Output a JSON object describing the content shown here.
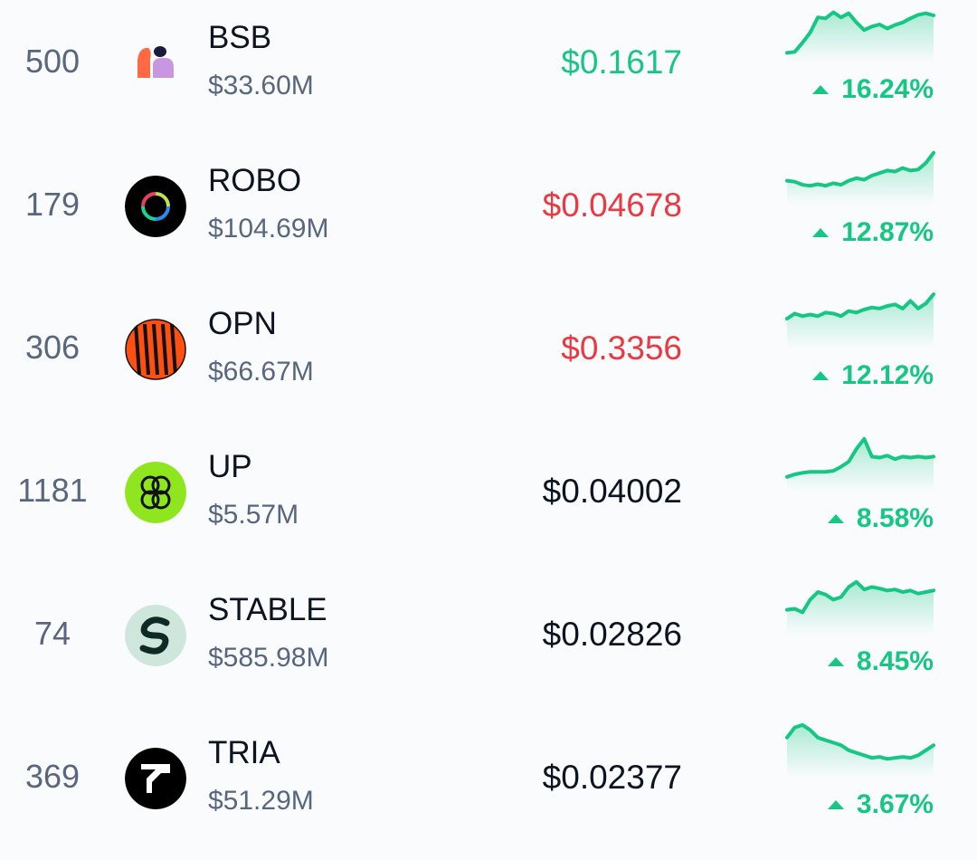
{
  "colors": {
    "up": "#16c784",
    "down": "#ea3943",
    "neutral": "#0d1421",
    "muted": "#58667e"
  },
  "coins": [
    {
      "rank": "500",
      "symbol": "BSB",
      "market_cap": "$33.60M",
      "price": "$0.1617",
      "price_trend": "up",
      "change": "16.24%",
      "change_dir": "up",
      "icon": "bsb-logo",
      "spark": [
        10,
        12,
        30,
        50,
        80,
        78,
        90,
        80,
        88,
        70,
        55,
        62,
        66,
        58,
        65,
        70,
        78,
        85,
        88,
        84
      ]
    },
    {
      "rank": "179",
      "symbol": "ROBO",
      "market_cap": "$104.69M",
      "price": "$0.04678",
      "price_trend": "down",
      "change": "12.87%",
      "change_dir": "up",
      "icon": "robo-logo",
      "spark": [
        40,
        38,
        32,
        30,
        33,
        30,
        35,
        32,
        40,
        45,
        42,
        50,
        55,
        60,
        58,
        65,
        60,
        62,
        75,
        95
      ]
    },
    {
      "rank": "306",
      "symbol": "OPN",
      "market_cap": "$66.67M",
      "price": "$0.3356",
      "price_trend": "down",
      "change": "12.12%",
      "change_dir": "up",
      "icon": "opn-logo",
      "spark": [
        50,
        60,
        55,
        58,
        55,
        62,
        60,
        55,
        65,
        62,
        68,
        72,
        70,
        75,
        78,
        70,
        85,
        70,
        80,
        98
      ]
    },
    {
      "rank": "1181",
      "symbol": "UP",
      "market_cap": "$5.57M",
      "price": "$0.04002",
      "price_trend": "neutral",
      "change": "8.58%",
      "change_dir": "up",
      "icon": "up-logo",
      "spark": [
        20,
        25,
        28,
        30,
        30,
        30,
        32,
        40,
        50,
        75,
        95,
        60,
        58,
        62,
        55,
        60,
        58,
        60,
        58,
        60
      ]
    },
    {
      "rank": "74",
      "symbol": "STABLE",
      "market_cap": "$585.98M",
      "price": "$0.02826",
      "price_trend": "neutral",
      "change": "8.45%",
      "change_dir": "up",
      "icon": "stable-logo",
      "spark": [
        40,
        42,
        35,
        60,
        75,
        70,
        60,
        65,
        85,
        95,
        80,
        85,
        82,
        78,
        80,
        75,
        78,
        72,
        75,
        78
      ]
    },
    {
      "rank": "369",
      "symbol": "TRIA",
      "market_cap": "$51.29M",
      "price": "$0.02377",
      "price_trend": "neutral",
      "change": "3.67%",
      "change_dir": "up",
      "icon": "tria-logo",
      "spark": [
        70,
        90,
        95,
        85,
        70,
        65,
        60,
        55,
        45,
        40,
        35,
        30,
        32,
        28,
        30,
        32,
        30,
        35,
        45,
        55
      ]
    }
  ]
}
